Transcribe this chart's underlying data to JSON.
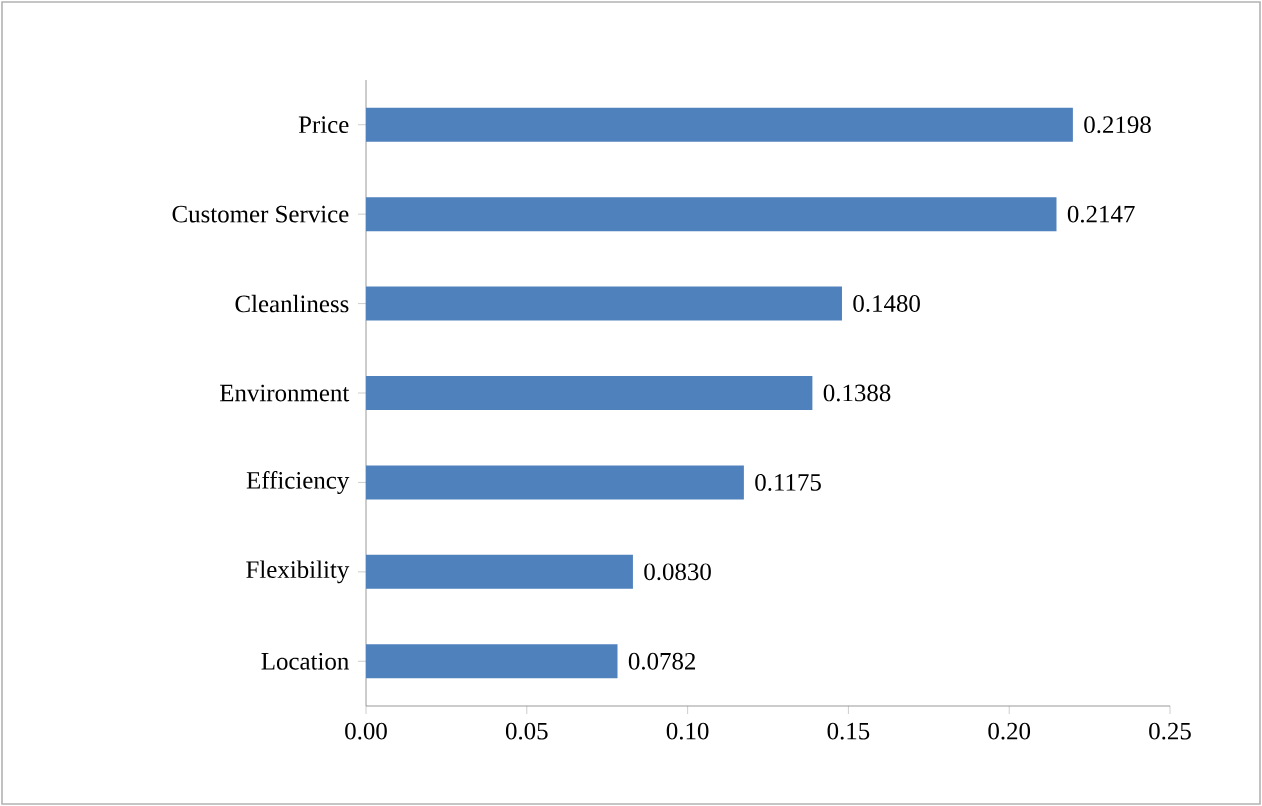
{
  "chart_data": {
    "type": "bar",
    "orientation": "horizontal",
    "categories": [
      "Price",
      "Customer Service",
      "Cleanliness",
      "Environment",
      "Efficiency",
      "Flexibility",
      "Location"
    ],
    "values": [
      0.2198,
      0.2147,
      0.148,
      0.1388,
      0.1175,
      0.083,
      0.0782
    ],
    "value_labels": [
      "0.2198",
      "0.2147",
      "0.1480",
      "0.1388",
      "0.1175",
      "0.0830",
      "0.0782"
    ],
    "color": "#4f81bd",
    "xlim": [
      0,
      0.25
    ],
    "xticks": [
      {
        "value": 0,
        "label": "0.00"
      },
      {
        "value": 0.05,
        "label": "0.05"
      },
      {
        "value": 0.1,
        "label": "0.10"
      },
      {
        "value": 0.15,
        "label": "0.15"
      },
      {
        "value": 0.2,
        "label": "0.20"
      },
      {
        "value": 0.25,
        "label": "0.25"
      }
    ],
    "grid": false
  }
}
